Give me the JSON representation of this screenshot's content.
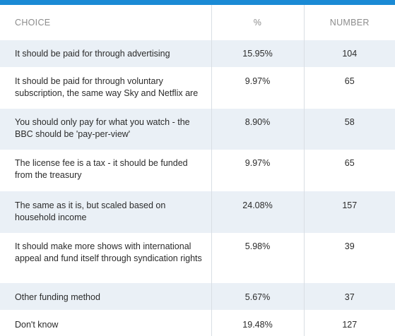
{
  "headers": {
    "choice": "CHOICE",
    "percent": "%",
    "number": "NUMBER"
  },
  "rows": [
    {
      "choice": "It should be paid for through advertising",
      "percent": "15.95%",
      "number": "104"
    },
    {
      "choice": "It should be paid for through voluntary subscription, the same way Sky and Netflix are",
      "percent": "9.97%",
      "number": "65"
    },
    {
      "choice": "You should only pay for what you watch - the BBC should be 'pay-per-view'",
      "percent": "8.90%",
      "number": "58"
    },
    {
      "choice": "The license fee is a tax - it should be funded from the treasury",
      "percent": "9.97%",
      "number": "65"
    },
    {
      "choice": "The same as it is, but scaled based on household income",
      "percent": "24.08%",
      "number": "157"
    },
    {
      "choice": "It should make more shows with international appeal and fund itself through syndication rights",
      "percent": "5.98%",
      "number": "39"
    },
    {
      "choice": "Other funding method",
      "percent": "5.67%",
      "number": "37"
    },
    {
      "choice": "Don't know",
      "percent": "19.48%",
      "number": "127"
    }
  ],
  "colors": {
    "accent": "#1a8ad5",
    "row_shade": "#eaf0f6",
    "header_text": "#8c8c8c"
  }
}
